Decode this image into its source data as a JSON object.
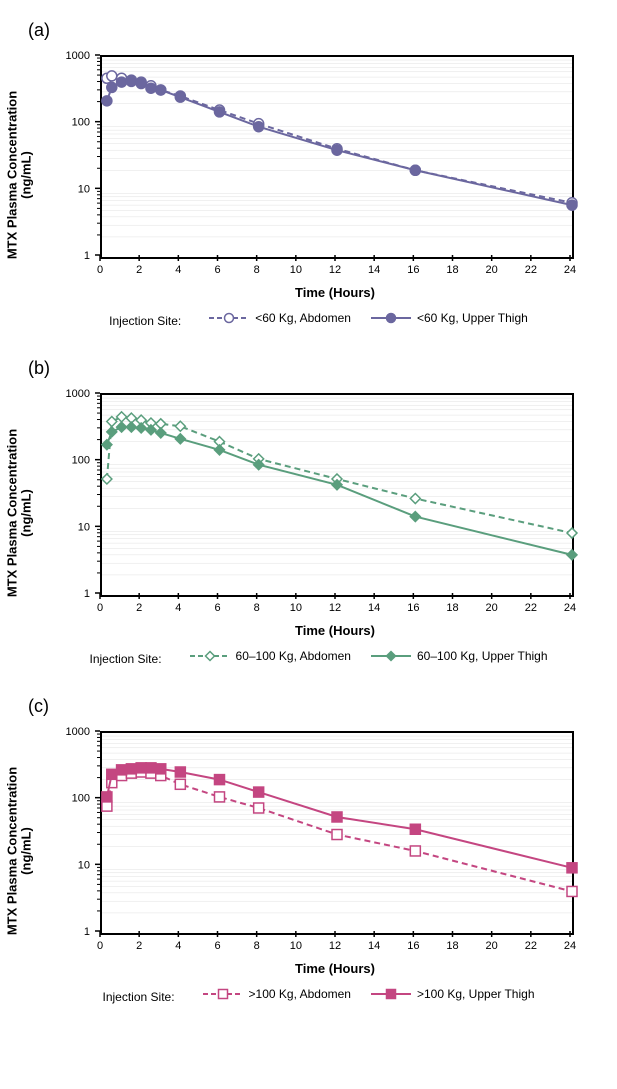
{
  "panels": [
    {
      "id": "a",
      "label": "(a)",
      "color": "#6b679f",
      "marker_shape": "circle",
      "legend_title": "Injection Site:",
      "ylabel": "MTX Plasma Concentration\n(ng/mL)",
      "xlabel": "Time (Hours)",
      "ylabel_fontsize": 13,
      "xlabel_fontsize": 13,
      "tick_fontsize": 11,
      "line_width": 2,
      "marker_size": 5,
      "xlim": [
        0,
        24
      ],
      "xticks": [
        0,
        2,
        4,
        6,
        8,
        10,
        12,
        14,
        16,
        18,
        20,
        22,
        24
      ],
      "yscale": "log",
      "ylim": [
        1,
        1000
      ],
      "yticks": [
        1,
        10,
        100,
        1000
      ],
      "grid_color": "#e0e0e0",
      "background_color": "#ffffff",
      "series": [
        {
          "label": "<60 Kg, Abdomen",
          "style": "dashed",
          "marker_fill": "open",
          "x": [
            0.25,
            0.5,
            1,
            1.5,
            2,
            2.5,
            3,
            4,
            6,
            8,
            12,
            16,
            24
          ],
          "y": [
            480,
            520,
            480,
            450,
            420,
            370,
            320,
            260,
            160,
            100,
            42,
            20,
            6.5
          ]
        },
        {
          "label": "<60 Kg, Upper Thigh",
          "style": "solid",
          "marker_fill": "filled",
          "x": [
            0.25,
            0.5,
            1,
            1.5,
            2,
            2.5,
            3,
            4,
            6,
            8,
            12,
            16,
            24
          ],
          "y": [
            220,
            350,
            420,
            430,
            400,
            340,
            320,
            250,
            150,
            90,
            40,
            20,
            6
          ]
        }
      ]
    },
    {
      "id": "b",
      "label": "(b)",
      "color": "#5a9e7d",
      "marker_shape": "diamond",
      "legend_title": "Injection Site:",
      "ylabel": "MTX Plasma Concentration\n(ng/mL)",
      "xlabel": "Time (Hours)",
      "ylabel_fontsize": 13,
      "xlabel_fontsize": 13,
      "tick_fontsize": 11,
      "line_width": 2,
      "marker_size": 5,
      "xlim": [
        0,
        24
      ],
      "xticks": [
        0,
        2,
        4,
        6,
        8,
        10,
        12,
        14,
        16,
        18,
        20,
        22,
        24
      ],
      "yscale": "log",
      "ylim": [
        1,
        1000
      ],
      "yticks": [
        1,
        10,
        100,
        1000
      ],
      "grid_color": "#e0e0e0",
      "background_color": "#ffffff",
      "series": [
        {
          "label": "60–100 Kg, Abdomen",
          "style": "dashed",
          "marker_fill": "open",
          "x": [
            0.25,
            0.5,
            1,
            1.5,
            2,
            2.5,
            3,
            4,
            6,
            8,
            12,
            16,
            24
          ],
          "y": [
            55,
            400,
            470,
            450,
            420,
            380,
            370,
            340,
            200,
            110,
            55,
            28,
            8.5
          ]
        },
        {
          "label": "60–100 Kg, Upper Thigh",
          "style": "solid",
          "marker_fill": "filled",
          "x": [
            0.25,
            0.5,
            1,
            1.5,
            2,
            2.5,
            3,
            4,
            6,
            8,
            12,
            16,
            24
          ],
          "y": [
            180,
            280,
            330,
            330,
            320,
            300,
            270,
            220,
            150,
            90,
            45,
            15,
            4
          ]
        }
      ]
    },
    {
      "id": "c",
      "label": "(c)",
      "color": "#c44681",
      "marker_shape": "square",
      "legend_title": "Injection Site:",
      "ylabel": "MTX Plasma Concentration\n(ng/mL)",
      "xlabel": "Time (Hours)",
      "ylabel_fontsize": 13,
      "xlabel_fontsize": 13,
      "tick_fontsize": 11,
      "line_width": 2,
      "marker_size": 5,
      "xlim": [
        0,
        24
      ],
      "xticks": [
        0,
        2,
        4,
        6,
        8,
        10,
        12,
        14,
        16,
        18,
        20,
        22,
        24
      ],
      "yscale": "log",
      "ylim": [
        1,
        1000
      ],
      "yticks": [
        1,
        10,
        100,
        1000
      ],
      "grid_color": "#e0e0e0",
      "background_color": "#ffffff",
      "series": [
        {
          "label": ">100 Kg, Abdomen",
          "style": "dashed",
          "marker_fill": "open",
          "x": [
            0.25,
            0.5,
            1,
            1.5,
            2,
            2.5,
            3,
            4,
            6,
            8,
            12,
            16,
            24
          ],
          "y": [
            80,
            180,
            230,
            250,
            260,
            250,
            230,
            170,
            110,
            75,
            30,
            17,
            4.2
          ]
        },
        {
          "label": ">100 Kg, Upper Thigh",
          "style": "solid",
          "marker_fill": "filled",
          "x": [
            0.25,
            0.5,
            1,
            1.5,
            2,
            2.5,
            3,
            4,
            6,
            8,
            12,
            16,
            24
          ],
          "y": [
            110,
            240,
            280,
            290,
            300,
            300,
            290,
            260,
            200,
            130,
            55,
            36,
            9.5
          ]
        }
      ]
    }
  ]
}
